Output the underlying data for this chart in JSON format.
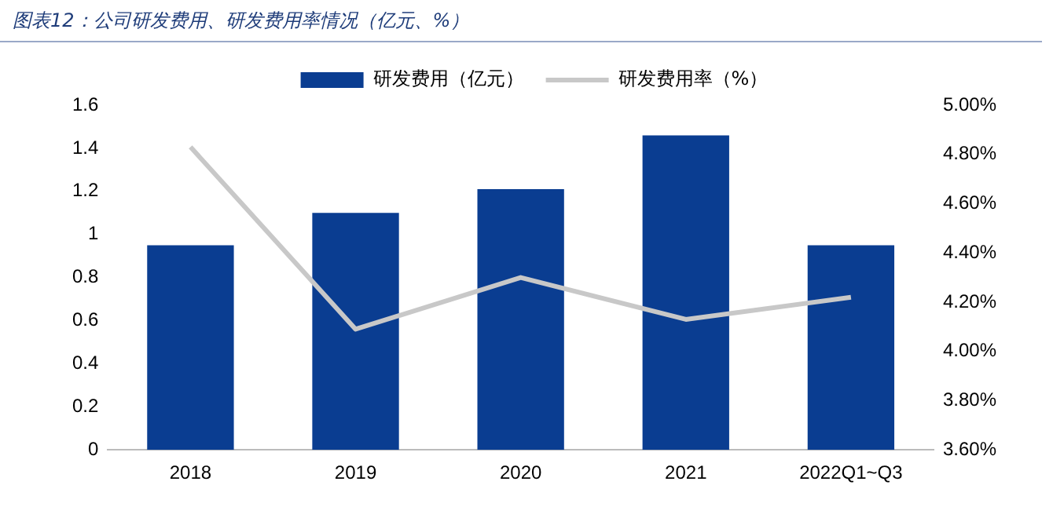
{
  "chart_data": {
    "type": "bar",
    "title": "图表12：公司研发费用、研发费用率情况（亿元、%）",
    "categories": [
      "2018",
      "2019",
      "2020",
      "2021",
      "2022Q1~Q3"
    ],
    "series": [
      {
        "name": "研发费用（亿元）",
        "color": "#0a3d91",
        "values": [
          0.95,
          1.1,
          1.21,
          1.46,
          0.95
        ]
      },
      {
        "name": "研发费用率（%）",
        "type": "line",
        "axis": "y2",
        "color": "#c8c8c8",
        "values": [
          4.83,
          4.09,
          4.3,
          4.13,
          4.22
        ]
      }
    ],
    "ylim": [
      0,
      1.6
    ],
    "yticks": [
      0,
      0.2,
      0.4,
      0.6,
      0.8,
      1,
      1.2,
      1.4,
      1.6
    ],
    "y2lim": [
      3.6,
      5
    ],
    "y2ticks": [
      {
        "value": 3.6,
        "label": "3.60%"
      },
      {
        "value": 3.8,
        "label": "3.80%"
      },
      {
        "value": 4,
        "label": "4.00%"
      },
      {
        "value": 4.2,
        "label": "4.20%"
      },
      {
        "value": 4.4,
        "label": "4.40%"
      },
      {
        "value": 4.6,
        "label": "4.60%"
      },
      {
        "value": 4.8,
        "label": "4.80%"
      },
      {
        "value": 5,
        "label": "5.00%"
      }
    ],
    "grid": false,
    "legend": "top",
    "marker": "none",
    "line_style": "solid"
  }
}
